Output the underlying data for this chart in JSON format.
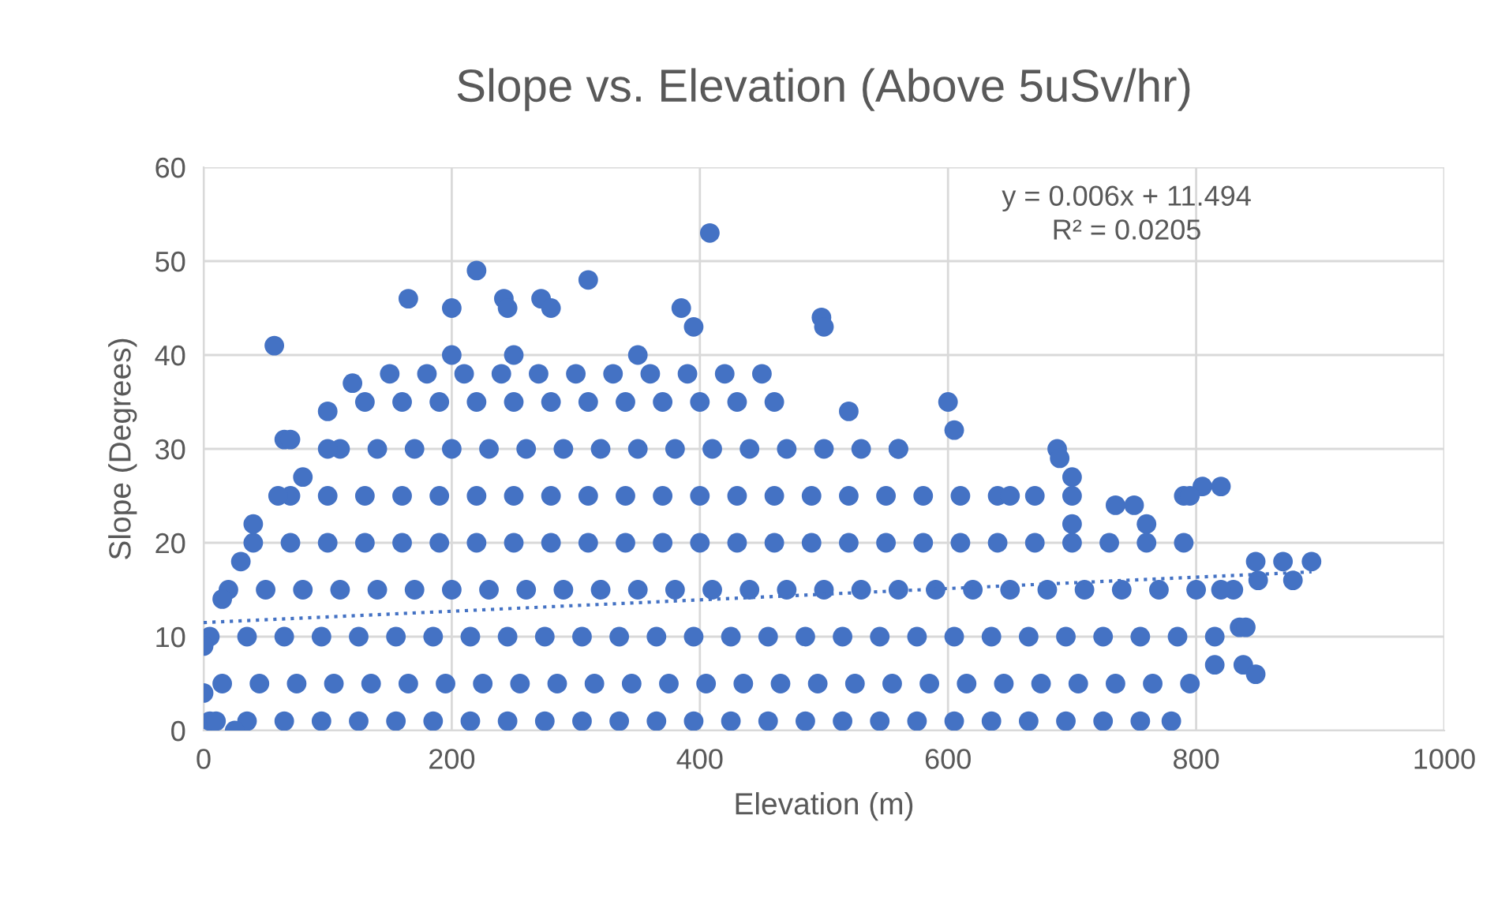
{
  "chart_data": {
    "type": "scatter",
    "title": "Slope vs. Elevation (Above 5uSv/hr)",
    "xlabel": "Elevation (m)",
    "ylabel": "Slope (Degrees)",
    "xlim": [
      0,
      1000
    ],
    "xticks": [
      0,
      200,
      400,
      600,
      800,
      1000
    ],
    "ylim": [
      0,
      60
    ],
    "yticks": [
      0,
      10,
      20,
      30,
      40,
      50,
      60
    ],
    "grid": true,
    "legend": false,
    "marker": "circle",
    "annotations": [
      "y = 0.006x + 11.494",
      "R² = 0.0205"
    ],
    "series": [
      {
        "color": "#4472c4",
        "x": [
          5,
          35,
          65,
          95,
          125,
          155,
          185,
          215,
          245,
          275,
          305,
          335,
          365,
          395,
          425,
          455,
          485,
          515,
          545,
          575,
          605,
          635,
          665,
          695,
          725,
          755,
          15,
          45,
          75,
          105,
          135,
          165,
          195,
          225,
          255,
          285,
          315,
          345,
          375,
          405,
          435,
          465,
          495,
          525,
          555,
          585,
          615,
          645,
          675,
          705,
          735,
          765,
          795,
          5,
          35,
          65,
          95,
          125,
          155,
          185,
          215,
          245,
          275,
          305,
          335,
          365,
          395,
          425,
          455,
          485,
          515,
          545,
          575,
          605,
          635,
          665,
          695,
          725,
          755,
          785,
          815,
          20,
          50,
          80,
          110,
          140,
          170,
          200,
          230,
          260,
          290,
          320,
          350,
          380,
          410,
          440,
          470,
          500,
          530,
          560,
          590,
          620,
          650,
          680,
          710,
          740,
          770,
          800,
          830,
          40,
          70,
          100,
          130,
          160,
          190,
          220,
          250,
          280,
          310,
          340,
          370,
          400,
          430,
          460,
          490,
          520,
          550,
          580,
          610,
          640,
          670,
          700,
          730,
          760,
          790,
          70,
          100,
          130,
          160,
          190,
          220,
          250,
          280,
          310,
          340,
          370,
          400,
          430,
          460,
          490,
          520,
          550,
          580,
          610,
          640,
          670,
          700,
          790,
          110,
          140,
          170,
          200,
          230,
          260,
          290,
          320,
          350,
          380,
          410,
          440,
          470,
          500,
          530,
          560,
          130,
          160,
          190,
          220,
          250,
          280,
          310,
          340,
          370,
          400,
          430,
          460,
          180,
          210,
          240,
          270,
          300,
          330,
          360,
          390,
          420,
          0,
          0,
          15,
          30,
          40,
          60,
          80,
          100,
          120,
          150,
          200,
          250,
          350,
          450,
          520,
          560,
          650,
          700,
          760,
          820,
          850,
          57,
          100,
          65,
          70,
          165,
          200,
          220,
          242,
          245,
          272,
          280,
          310,
          408,
          385,
          395,
          498,
          500,
          600,
          605,
          750,
          780,
          815,
          835,
          840,
          838,
          848,
          893,
          878,
          870,
          848,
          820,
          805,
          795,
          735,
          700,
          688,
          690,
          25,
          10
        ],
        "values": [
          1,
          1,
          1,
          1,
          1,
          1,
          1,
          1,
          1,
          1,
          1,
          1,
          1,
          1,
          1,
          1,
          1,
          1,
          1,
          1,
          1,
          1,
          1,
          1,
          1,
          1,
          5,
          5,
          5,
          5,
          5,
          5,
          5,
          5,
          5,
          5,
          5,
          5,
          5,
          5,
          5,
          5,
          5,
          5,
          5,
          5,
          5,
          5,
          5,
          5,
          5,
          5,
          5,
          10,
          10,
          10,
          10,
          10,
          10,
          10,
          10,
          10,
          10,
          10,
          10,
          10,
          10,
          10,
          10,
          10,
          10,
          10,
          10,
          10,
          10,
          10,
          10,
          10,
          10,
          10,
          10,
          15,
          15,
          15,
          15,
          15,
          15,
          15,
          15,
          15,
          15,
          15,
          15,
          15,
          15,
          15,
          15,
          15,
          15,
          15,
          15,
          15,
          15,
          15,
          15,
          15,
          15,
          15,
          15,
          20,
          20,
          20,
          20,
          20,
          20,
          20,
          20,
          20,
          20,
          20,
          20,
          20,
          20,
          20,
          20,
          20,
          20,
          20,
          20,
          20,
          20,
          20,
          20,
          20,
          20,
          25,
          25,
          25,
          25,
          25,
          25,
          25,
          25,
          25,
          25,
          25,
          25,
          25,
          25,
          25,
          25,
          25,
          25,
          25,
          25,
          25,
          25,
          25,
          30,
          30,
          30,
          30,
          30,
          30,
          30,
          30,
          30,
          30,
          30,
          30,
          30,
          30,
          30,
          30,
          35,
          35,
          35,
          35,
          35,
          35,
          35,
          35,
          35,
          35,
          35,
          35,
          38,
          38,
          38,
          38,
          38,
          38,
          38,
          38,
          38,
          4,
          9,
          14,
          18,
          22,
          25,
          27,
          30,
          37,
          38,
          40,
          40,
          40,
          38,
          34,
          30,
          25,
          22,
          22,
          15,
          16,
          41,
          34,
          31,
          31,
          46,
          45,
          49,
          46,
          45,
          46,
          45,
          48,
          53,
          45,
          43,
          44,
          43,
          35,
          32,
          24,
          1,
          7,
          11,
          11,
          7,
          6,
          18,
          16,
          18,
          18,
          26,
          26,
          25,
          24,
          27,
          30,
          29,
          0,
          1
        ]
      },
      {
        "type": "line",
        "color": "#4472c4",
        "line_style": "dotted",
        "marker": "none",
        "x": [
          0,
          893
        ],
        "values": [
          11.5,
          16.9
        ]
      }
    ]
  }
}
